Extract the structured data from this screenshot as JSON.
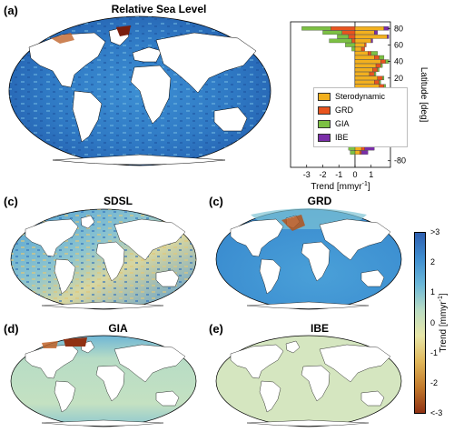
{
  "panels": {
    "a": {
      "label": "(a)",
      "title": "Relative Sea Level"
    },
    "c1": {
      "label": "(c)",
      "title": "SDSL"
    },
    "c2": {
      "label": "(c)",
      "title": "GRD"
    },
    "d": {
      "label": "(d)",
      "title": "GIA"
    },
    "e": {
      "label": "(e)",
      "title": "IBE"
    }
  },
  "colorbar": {
    "label": "Trend [mmyr",
    "label_sup": "-1",
    "label_end": "]",
    "ticks": [
      ">3",
      "2",
      "1",
      "0",
      "-1",
      "-2",
      "<-3"
    ],
    "colors": [
      "#2e5fb0",
      "#3f8ed0",
      "#6bb7d8",
      "#b9dcc4",
      "#e7e6a8",
      "#e0b75a",
      "#c27a2c",
      "#8f3113"
    ]
  },
  "chart_data": {
    "type": "bar",
    "orientation": "horizontal",
    "stacked": true,
    "categories": [
      80,
      75,
      70,
      65,
      60,
      55,
      50,
      45,
      40,
      35,
      30,
      25,
      20,
      15,
      10,
      5,
      0,
      -5,
      -10,
      -15,
      -20,
      -25,
      -30,
      -35,
      -40,
      -45,
      -50,
      -55,
      -60,
      -65,
      -70
    ],
    "series": [
      {
        "name": "Sterodynamic",
        "color": "#f2b01e",
        "values": [
          1.8,
          1.2,
          2.0,
          1.0,
          0.6,
          0.4,
          0.8,
          1.2,
          1.6,
          1.3,
          1.1,
          0.9,
          1.4,
          1.2,
          1.5,
          1.7,
          1.3,
          1.2,
          1.5,
          1.4,
          1.2,
          1.1,
          1.5,
          1.4,
          1.0,
          1.2,
          1.3,
          1.5,
          0.6,
          0.4,
          0.3
        ]
      },
      {
        "name": "GRD",
        "color": "#e8541e",
        "values": [
          -1.5,
          -0.8,
          -0.4,
          -0.2,
          0.1,
          0.2,
          0.2,
          0.3,
          0.3,
          0.3,
          0.3,
          0.3,
          0.3,
          0.3,
          0.3,
          0.3,
          0.3,
          0.3,
          0.3,
          0.3,
          0.3,
          0.3,
          0.3,
          0.3,
          0.3,
          0.3,
          0.3,
          0.3,
          0.3,
          0.2,
          0.1
        ]
      },
      {
        "name": "GIA",
        "color": "#7cc043",
        "values": [
          -1.8,
          -1.2,
          -0.7,
          -1.4,
          -0.6,
          -0.2,
          0.4,
          0.3,
          0.2,
          0.1,
          0.1,
          0.1,
          0.1,
          0.1,
          0.1,
          0.0,
          -0.1,
          -0.1,
          -0.1,
          -0.1,
          -0.1,
          -0.1,
          -0.1,
          -0.1,
          -0.2,
          -0.3,
          -0.4,
          -0.6,
          -0.9,
          -0.4,
          -0.3
        ]
      },
      {
        "name": "IBE",
        "color": "#7a2ea8",
        "values": [
          0.3,
          0.2,
          0.1,
          0.1,
          0.0,
          0.0,
          0.0,
          0.0,
          0.0,
          0.0,
          0.0,
          0.0,
          0.0,
          0.0,
          0.0,
          0.0,
          0.0,
          0.0,
          0.0,
          0.0,
          0.0,
          0.0,
          0.0,
          0.0,
          0.0,
          0.0,
          0.1,
          0.1,
          0.3,
          0.6,
          0.4
        ]
      }
    ],
    "xlabel": "Trend [mmyr",
    "xlabel_sup": "-1",
    "xlabel_end": "]",
    "ylabel": "Latitude [deg]",
    "xticks": [
      -3,
      -2,
      -1,
      0,
      1
    ],
    "yticks": [
      80,
      60,
      40,
      20,
      0,
      -20,
      -40,
      -60,
      -80
    ],
    "xlim": [
      -4,
      2.2
    ],
    "ylim": [
      -88,
      88
    ],
    "legend_position": "left"
  }
}
